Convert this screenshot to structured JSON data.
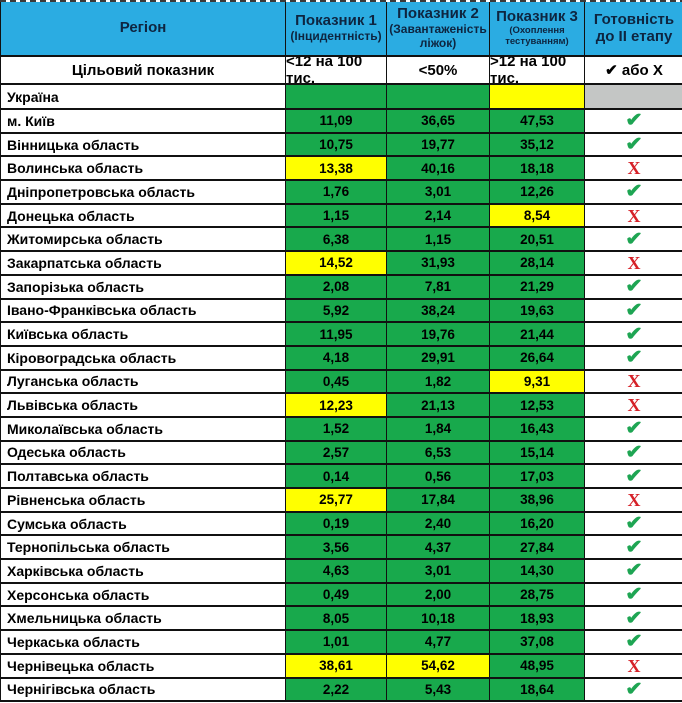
{
  "colors": {
    "header_bg": "#2BACE2",
    "green": "#18A94C",
    "yellow": "#FFFF00",
    "gray": "#C4C6C5",
    "check": "#1EA553",
    "cross": "#D62128",
    "header_text": "#0E2540"
  },
  "icons": {
    "check": "✔",
    "cross": "X"
  },
  "table": {
    "header": {
      "region": "Регіон",
      "col1_title": "Показник 1",
      "col1_sub": "(Інцидентність)",
      "col2_title": "Показник 2",
      "col2_sub": "(Завантаженість ліжок)",
      "col3_title": "Показник 3",
      "col3_sub": "(Охоплення тестуванням)",
      "col4_line1": "Готовність",
      "col4_line2": "до II етапу"
    },
    "target_row": {
      "label": "Цільовий показник",
      "col1": "<12 на 100 тис.",
      "col2": "<50%",
      "col3": ">12 на 100 тис.",
      "col4": "✔ або Х"
    },
    "rows": [
      {
        "name": "Україна",
        "v1": "",
        "v2": "",
        "v3": "",
        "c1": "green",
        "c2": "green",
        "c3": "yellow",
        "status": "gray"
      },
      {
        "name": "м. Київ",
        "v1": "11,09",
        "v2": "36,65",
        "v3": "47,53",
        "c1": "green",
        "c2": "green",
        "c3": "green",
        "status": "check"
      },
      {
        "name": "Вінницька область",
        "v1": "10,75",
        "v2": "19,77",
        "v3": "35,12",
        "c1": "green",
        "c2": "green",
        "c3": "green",
        "status": "check"
      },
      {
        "name": "Волинська область",
        "v1": "13,38",
        "v2": "40,16",
        "v3": "18,18",
        "c1": "yellow",
        "c2": "green",
        "c3": "green",
        "status": "cross"
      },
      {
        "name": "Дніпропетровська область",
        "v1": "1,76",
        "v2": "3,01",
        "v3": "12,26",
        "c1": "green",
        "c2": "green",
        "c3": "green",
        "status": "check"
      },
      {
        "name": "Донецька область",
        "v1": "1,15",
        "v2": "2,14",
        "v3": "8,54",
        "c1": "green",
        "c2": "green",
        "c3": "yellow",
        "status": "cross"
      },
      {
        "name": "Житомирська область",
        "v1": "6,38",
        "v2": "1,15",
        "v3": "20,51",
        "c1": "green",
        "c2": "green",
        "c3": "green",
        "status": "check"
      },
      {
        "name": "Закарпатська область",
        "v1": "14,52",
        "v2": "31,93",
        "v3": "28,14",
        "c1": "yellow",
        "c2": "green",
        "c3": "green",
        "status": "cross"
      },
      {
        "name": "Запорізька область",
        "v1": "2,08",
        "v2": "7,81",
        "v3": "21,29",
        "c1": "green",
        "c2": "green",
        "c3": "green",
        "status": "check"
      },
      {
        "name": "Івано-Франківська область",
        "v1": "5,92",
        "v2": "38,24",
        "v3": "19,63",
        "c1": "green",
        "c2": "green",
        "c3": "green",
        "status": "check"
      },
      {
        "name": "Київська область",
        "v1": "11,95",
        "v2": "19,76",
        "v3": "21,44",
        "c1": "green",
        "c2": "green",
        "c3": "green",
        "status": "check"
      },
      {
        "name": "Кіровоградська область",
        "v1": "4,18",
        "v2": "29,91",
        "v3": "26,64",
        "c1": "green",
        "c2": "green",
        "c3": "green",
        "status": "check"
      },
      {
        "name": "Луганська область",
        "v1": "0,45",
        "v2": "1,82",
        "v3": "9,31",
        "c1": "green",
        "c2": "green",
        "c3": "yellow",
        "status": "cross"
      },
      {
        "name": "Львівська область",
        "v1": "12,23",
        "v2": "21,13",
        "v3": "12,53",
        "c1": "yellow",
        "c2": "green",
        "c3": "green",
        "status": "cross"
      },
      {
        "name": "Миколаївська область",
        "v1": "1,52",
        "v2": "1,84",
        "v3": "16,43",
        "c1": "green",
        "c2": "green",
        "c3": "green",
        "status": "check"
      },
      {
        "name": "Одеська область",
        "v1": "2,57",
        "v2": "6,53",
        "v3": "15,14",
        "c1": "green",
        "c2": "green",
        "c3": "green",
        "status": "check"
      },
      {
        "name": "Полтавська область",
        "v1": "0,14",
        "v2": "0,56",
        "v3": "17,03",
        "c1": "green",
        "c2": "green",
        "c3": "green",
        "status": "check"
      },
      {
        "name": "Рівненська область",
        "v1": "25,77",
        "v2": "17,84",
        "v3": "38,96",
        "c1": "yellow",
        "c2": "green",
        "c3": "green",
        "status": "cross"
      },
      {
        "name": "Сумська область",
        "v1": "0,19",
        "v2": "2,40",
        "v3": "16,20",
        "c1": "green",
        "c2": "green",
        "c3": "green",
        "status": "check"
      },
      {
        "name": "Тернопільська область",
        "v1": "3,56",
        "v2": "4,37",
        "v3": "27,84",
        "c1": "green",
        "c2": "green",
        "c3": "green",
        "status": "check"
      },
      {
        "name": "Харківська область",
        "v1": "4,63",
        "v2": "3,01",
        "v3": "14,30",
        "c1": "green",
        "c2": "green",
        "c3": "green",
        "status": "check"
      },
      {
        "name": "Херсонська область",
        "v1": "0,49",
        "v2": "2,00",
        "v3": "28,75",
        "c1": "green",
        "c2": "green",
        "c3": "green",
        "status": "check"
      },
      {
        "name": "Хмельницька область",
        "v1": "8,05",
        "v2": "10,18",
        "v3": "18,93",
        "c1": "green",
        "c2": "green",
        "c3": "green",
        "status": "check"
      },
      {
        "name": "Черкаська область",
        "v1": "1,01",
        "v2": "4,77",
        "v3": "37,08",
        "c1": "green",
        "c2": "green",
        "c3": "green",
        "status": "check"
      },
      {
        "name": "Чернівецька область",
        "v1": "38,61",
        "v2": "54,62",
        "v3": "48,95",
        "c1": "yellow",
        "c2": "yellow",
        "c3": "green",
        "status": "cross"
      },
      {
        "name": "Чернігівська область",
        "v1": "2,22",
        "v2": "5,43",
        "v3": "18,64",
        "c1": "green",
        "c2": "green",
        "c3": "green",
        "status": "check"
      }
    ]
  }
}
